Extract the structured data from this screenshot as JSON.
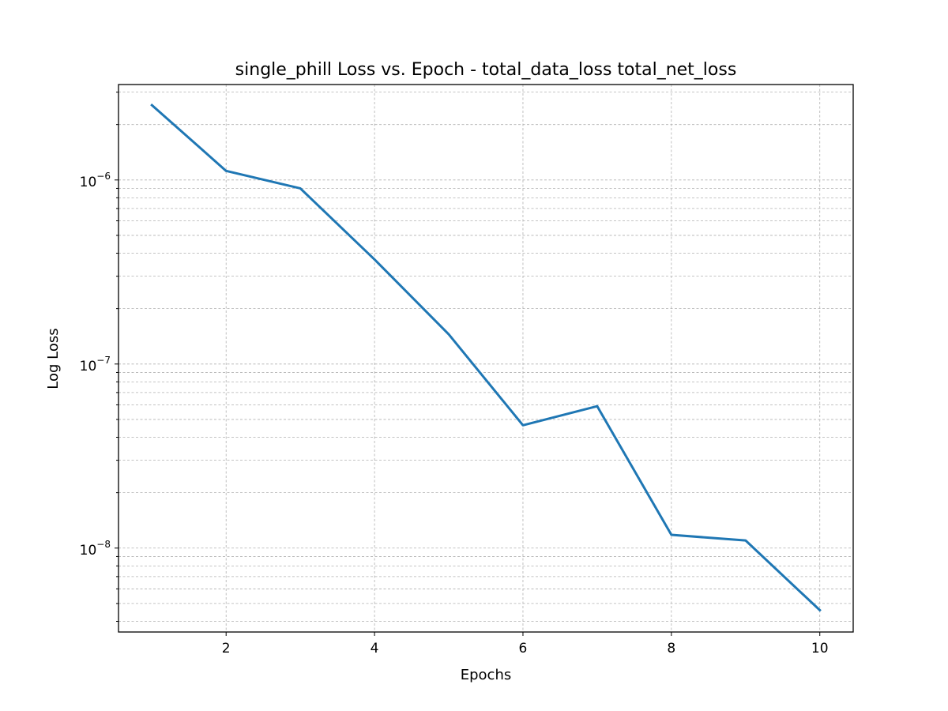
{
  "chart_data": {
    "type": "line",
    "title": "single_phill Loss vs. Epoch - total_data_loss total_net_loss",
    "xlabel": "Epochs",
    "ylabel": "Log Loss",
    "xlim": [
      0.55,
      10.45
    ],
    "ylim": [
      3.5e-09,
      3.3e-06
    ],
    "yscale": "log",
    "grid": true,
    "grid_style": "dashed",
    "line_color": "#1f77b4",
    "x_ticks": [
      2,
      4,
      6,
      8,
      10
    ],
    "y_tick_base": "10",
    "y_tick_exponents": [
      "−6",
      "−7",
      "−8"
    ],
    "y_tick_values": [
      1e-06,
      1e-07,
      1e-08
    ],
    "series": [
      {
        "x": [
          1,
          2,
          3,
          4,
          5,
          6,
          7,
          8,
          9,
          10
        ],
        "values": [
          2.55e-06,
          1.12e-06,
          9e-07,
          3.7e-07,
          1.45e-07,
          4.65e-08,
          5.9e-08,
          1.18e-08,
          1.1e-08,
          4.6e-09
        ]
      }
    ]
  }
}
